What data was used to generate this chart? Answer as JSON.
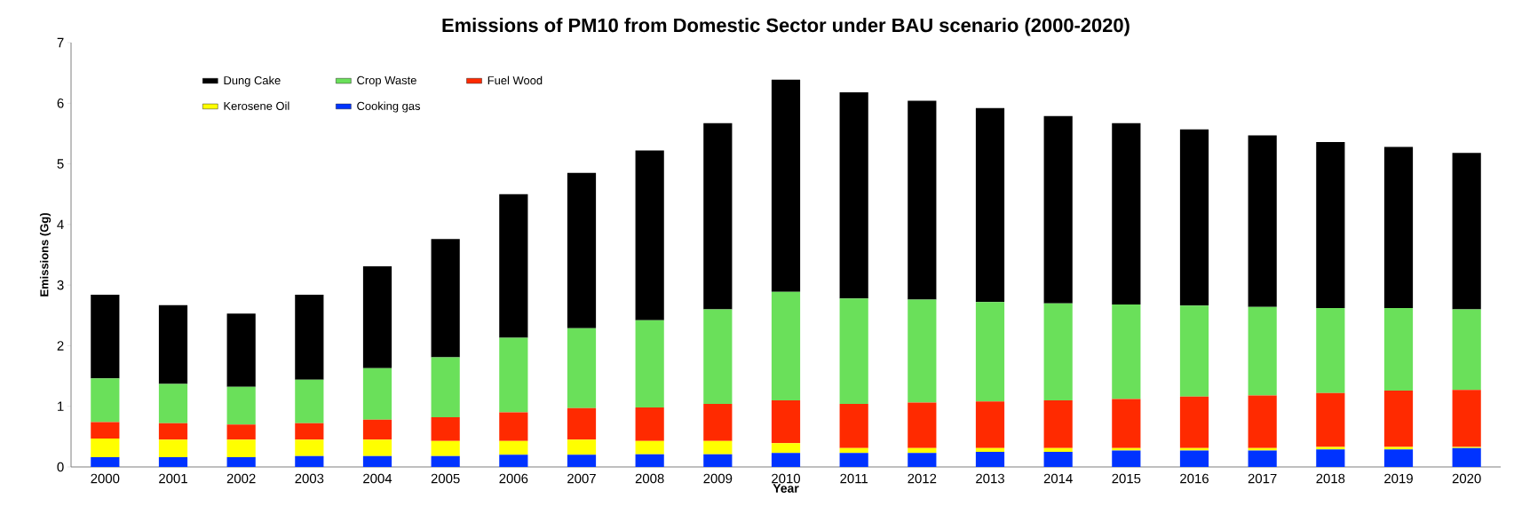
{
  "chart_data": {
    "type": "bar",
    "stacked": true,
    "title": "Emissions of PM10 from Domestic Sector under BAU scenario (2000-2020)",
    "xlabel": "Year",
    "ylabel": "Emissions (Gg)",
    "categories": [
      "2000",
      "2001",
      "2002",
      "2003",
      "2004",
      "2005",
      "2006",
      "2007",
      "2008",
      "2009",
      "2010",
      "2011",
      "2012",
      "2013",
      "2014",
      "2015",
      "2016",
      "2017",
      "2018",
      "2019",
      "2020"
    ],
    "ylim": [
      0,
      7
    ],
    "yticks": [
      0,
      1,
      2,
      3,
      4,
      5,
      6,
      7
    ],
    "grid": false,
    "legend": "top left",
    "series": [
      {
        "name": "Cooking gas",
        "color": "#0033ff",
        "values": [
          0.16,
          0.16,
          0.16,
          0.18,
          0.18,
          0.18,
          0.2,
          0.2,
          0.21,
          0.21,
          0.23,
          0.23,
          0.23,
          0.25,
          0.25,
          0.27,
          0.27,
          0.27,
          0.29,
          0.29,
          0.31
        ]
      },
      {
        "name": "Kerosene Oil",
        "color": "#ffff00",
        "values": [
          0.31,
          0.29,
          0.29,
          0.27,
          0.27,
          0.25,
          0.23,
          0.25,
          0.22,
          0.22,
          0.16,
          0.08,
          0.08,
          0.06,
          0.06,
          0.04,
          0.04,
          0.04,
          0.04,
          0.04,
          0.02
        ]
      },
      {
        "name": "Fuel Wood",
        "color": "#ff2a00",
        "values": [
          0.27,
          0.27,
          0.25,
          0.27,
          0.33,
          0.39,
          0.47,
          0.52,
          0.55,
          0.61,
          0.71,
          0.73,
          0.75,
          0.77,
          0.79,
          0.81,
          0.85,
          0.87,
          0.89,
          0.93,
          0.94
        ]
      },
      {
        "name": "Crop Waste",
        "color": "#6ae05a",
        "values": [
          0.72,
          0.65,
          0.62,
          0.72,
          0.85,
          0.99,
          1.23,
          1.32,
          1.44,
          1.56,
          1.79,
          1.74,
          1.7,
          1.64,
          1.6,
          1.56,
          1.5,
          1.46,
          1.4,
          1.36,
          1.33
        ]
      },
      {
        "name": "Dung Cake",
        "color": "#000000",
        "values": [
          1.38,
          1.3,
          1.21,
          1.4,
          1.68,
          1.95,
          2.37,
          2.56,
          2.8,
          3.07,
          3.5,
          3.4,
          3.28,
          3.2,
          3.09,
          2.99,
          2.91,
          2.83,
          2.74,
          2.66,
          2.58
        ]
      }
    ]
  }
}
